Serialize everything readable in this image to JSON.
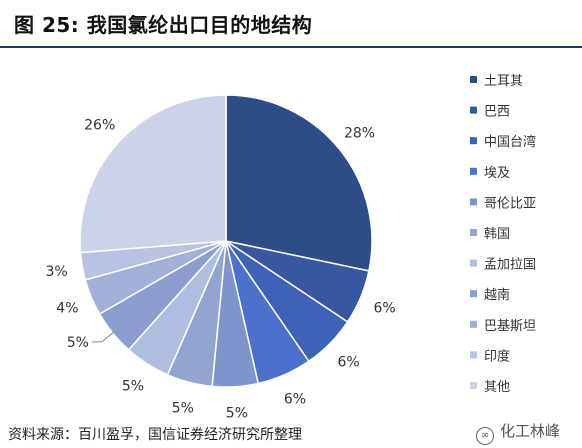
{
  "figure_title": "图 25:  我国氯纶出口目的地结构",
  "source_note": "资料来源：百川盈孚，国信证券经济研究所整理",
  "watermark": "化工林峰",
  "chart_data": {
    "type": "pie",
    "title": "",
    "legend_position": "right",
    "categories": [
      "土耳其",
      "巴西",
      "中国台湾",
      "埃及",
      "哥伦比亚",
      "韩国",
      "孟加拉国",
      "越南",
      "巴基斯坦",
      "印度",
      "其他"
    ],
    "values": [
      28,
      6,
      6,
      6,
      5,
      5,
      5,
      5,
      4,
      3,
      26
    ],
    "labels": [
      "28%",
      "6%",
      "6%",
      "6%",
      "5%",
      "5%",
      "5%",
      "5%",
      "4%",
      "3%",
      "26%"
    ],
    "colors": [
      "#2e4c88",
      "#3558a1",
      "#3d62b8",
      "#4a72cc",
      "#7f93cc",
      "#93a4d2",
      "#b1bddf",
      "#8a9cd0",
      "#a2afd8",
      "#b9c2e2",
      "#ccd2e8"
    ]
  }
}
